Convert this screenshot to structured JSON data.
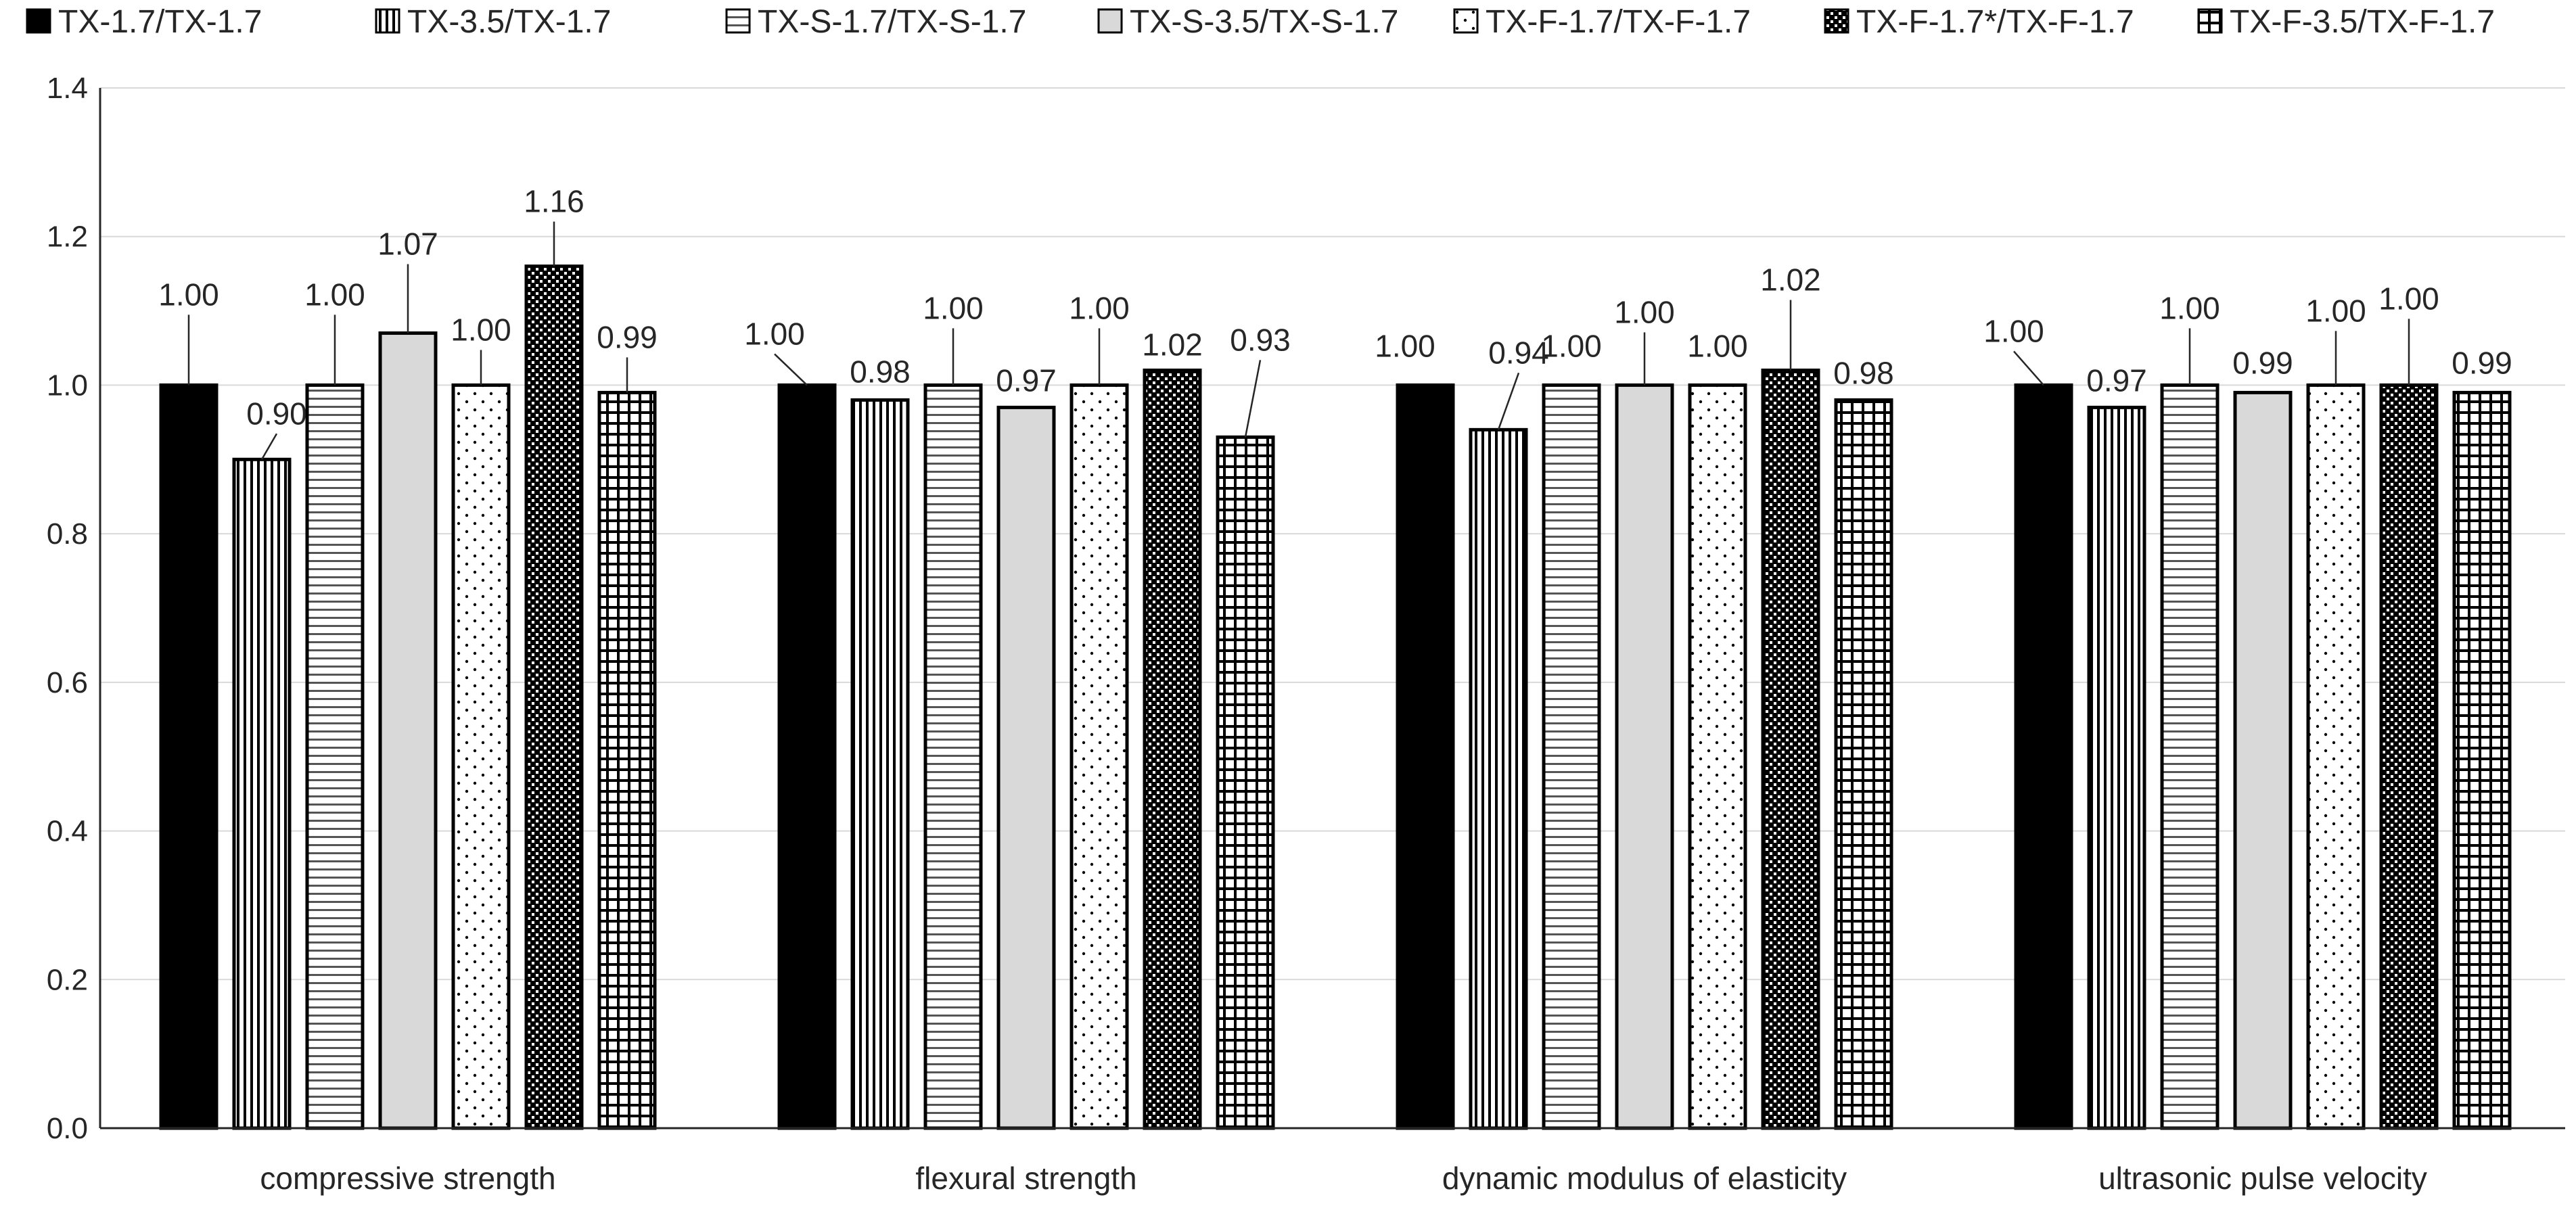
{
  "chart_data": {
    "type": "bar",
    "title": "",
    "xlabel": "",
    "ylabel": "",
    "ylim": [
      0,
      1.4
    ],
    "yticks": [
      "0.0",
      "0.2",
      "0.4",
      "0.6",
      "0.8",
      "1.0",
      "1.2",
      "1.4"
    ],
    "grid": true,
    "legend_position": "top",
    "categories": [
      "compressive strength",
      "flexural strength",
      "dynamic modulus of elasticity",
      "ultrasonic pulse velocity"
    ],
    "series": [
      {
        "name": "TX-1.7/TX-1.7",
        "pattern": "solid-black",
        "values": [
          1.0,
          1.0,
          1.0,
          1.0
        ],
        "labels": [
          "1.00",
          "1.00",
          "1.00",
          "1.00"
        ]
      },
      {
        "name": "TX-3.5/TX-1.7",
        "pattern": "vertical-lines",
        "values": [
          0.9,
          0.98,
          0.94,
          0.97
        ],
        "labels": [
          "0.90",
          "0.98",
          "0.94",
          "0.97"
        ]
      },
      {
        "name": "TX-S-1.7/TX-S-1.7",
        "pattern": "horizontal-lines",
        "values": [
          1.0,
          1.0,
          1.0,
          1.0
        ],
        "labels": [
          "1.00",
          "1.00",
          "1.00",
          "1.00"
        ]
      },
      {
        "name": "TX-S-3.5/TX-S-1.7",
        "pattern": "solid-gray",
        "values": [
          1.07,
          0.97,
          1.0,
          0.99
        ],
        "labels": [
          "1.07",
          "0.97",
          "1.00",
          "0.99"
        ]
      },
      {
        "name": "TX-F-1.7/TX-F-1.7",
        "pattern": "dots",
        "values": [
          1.0,
          1.0,
          1.0,
          1.0
        ],
        "labels": [
          "1.00",
          "1.00",
          "1.00",
          "1.00"
        ]
      },
      {
        "name": "TX-F-1.7*/TX-F-1.7",
        "pattern": "checker",
        "values": [
          1.16,
          1.02,
          1.02,
          1.0
        ],
        "labels": [
          "1.16",
          "1.02",
          "1.02",
          "1.00"
        ]
      },
      {
        "name": "TX-F-3.5/TX-F-1.7",
        "pattern": "grid",
        "values": [
          0.99,
          0.93,
          0.98,
          0.99
        ],
        "labels": [
          "0.99",
          "0.93",
          "0.98",
          "0.99"
        ]
      }
    ]
  },
  "colors": {
    "axis": "#262626",
    "gridline": "#d9d9d9",
    "bar_stroke": "#000000",
    "solid_black": "#000000",
    "solid_gray": "#d9d9d9",
    "background": "#ffffff"
  }
}
